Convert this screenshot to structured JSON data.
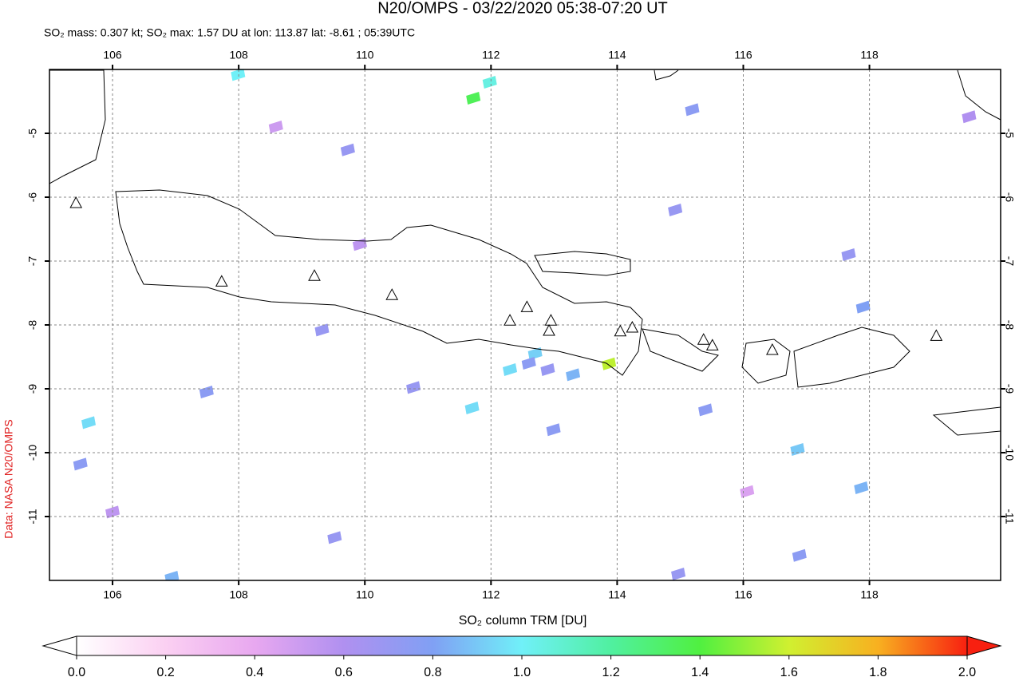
{
  "chart_data": {
    "type": "map",
    "title": "N20/OMPS - 03/22/2020 05:38-07:20 UT",
    "subtitle": "SO₂ mass: 0.307 kt; SO₂ max: 1.57 DU at lon: 113.87 lat: -8.61 ; 05:39UTC",
    "credit": "Data: NASA N20/OMPS",
    "colorbar_label": "SO₂ column TRM [DU]",
    "xlim": [
      105,
      120.08
    ],
    "ylim": [
      -12,
      -4
    ],
    "xticks": [
      106,
      108,
      110,
      112,
      114,
      116,
      118
    ],
    "yticks": [
      -5,
      -6,
      -7,
      -8,
      -9,
      -10,
      -11
    ],
    "grid": true,
    "clim": [
      0,
      2
    ],
    "cticks": [
      {
        "value": 0,
        "label": "0.0"
      },
      {
        "value": 0.2,
        "label": "0.2"
      },
      {
        "value": 0.4,
        "label": "0.4"
      },
      {
        "value": 0.6,
        "label": "0.6"
      },
      {
        "value": 0.8,
        "label": "0.8"
      },
      {
        "value": 1,
        "label": "1.0"
      },
      {
        "value": 1.2,
        "label": "1.2"
      },
      {
        "value": 1.4,
        "label": "1.4"
      },
      {
        "value": 1.6,
        "label": "1.6"
      },
      {
        "value": 1.8,
        "label": "1.8"
      },
      {
        "value": 2,
        "label": "2.0"
      }
    ],
    "colormap": [
      "#ffffff",
      "#fbd0f2",
      "#e8a8f0",
      "#b090f0",
      "#80a0f4",
      "#70f0f8",
      "#50f0a0",
      "#50f040",
      "#d0f030",
      "#f8b020",
      "#f82010"
    ],
    "pixels": {
      "lon": [
        113.87,
        111.72,
        111.98,
        107.99,
        112.3,
        112.7,
        111.7,
        112.6,
        112.9,
        109.73,
        115.19,
        114.92,
        117.67,
        117.9,
        117.87,
        116.86,
        107.49,
        109.32,
        110.77,
        112.99,
        113.3,
        115.4,
        116.89,
        114.97,
        106.94,
        105.62,
        105.49,
        106.0,
        109.52,
        108.59,
        109.92,
        116.06,
        119.58
      ],
      "lat": [
        -8.61,
        -4.45,
        -4.2,
        -4.08,
        -8.7,
        -8.45,
        -9.3,
        -8.6,
        -8.7,
        -5.26,
        -4.63,
        -6.2,
        -6.9,
        -7.72,
        -10.55,
        -9.95,
        -9.05,
        -8.08,
        -8.98,
        -9.64,
        -8.78,
        -9.33,
        -11.61,
        -11.9,
        -11.95,
        -9.53,
        -10.18,
        -10.93,
        -11.33,
        -4.9,
        -6.74,
        -10.61,
        -4.74
      ],
      "values": [
        1.57,
        1.35,
        1.05,
        1.0,
        0.95,
        0.92,
        0.95,
        0.75,
        0.7,
        0.7,
        0.75,
        0.7,
        0.7,
        0.8,
        0.85,
        0.9,
        0.75,
        0.7,
        0.7,
        0.75,
        0.85,
        0.75,
        0.75,
        0.7,
        0.85,
        0.95,
        0.75,
        0.55,
        0.7,
        0.5,
        0.55,
        0.45,
        0.6
      ]
    },
    "volcanoes": {
      "lon": [
        105.42,
        107.73,
        109.2,
        110.43,
        112.3,
        112.57,
        112.95,
        112.92,
        114.05,
        114.24,
        115.37,
        115.51,
        116.46,
        119.06
      ],
      "lat": [
        -6.1,
        -7.33,
        -7.24,
        -7.54,
        -7.94,
        -7.73,
        -7.94,
        -8.1,
        -8.11,
        -8.05,
        -8.24,
        -8.33,
        -8.4,
        -8.18
      ]
    }
  }
}
